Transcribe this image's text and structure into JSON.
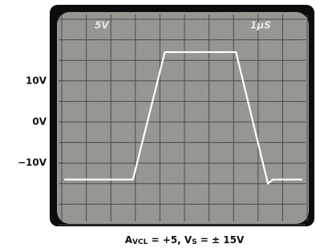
{
  "chart_data": {
    "type": "line",
    "scale_labels": [
      "5V",
      "1µS"
    ],
    "caption": {
      "a": "A",
      "a_sub": "VCL",
      "mid": " = +5, V",
      "v_sub": "S",
      "end": " = ± 15V"
    },
    "x": [
      0.1,
      2.9,
      4.2,
      7.1,
      8.4,
      8.6,
      9.8
    ],
    "series": [
      {
        "color": "#ffffff",
        "values": [
          -14,
          -14,
          17,
          17,
          -15,
          -14,
          -14
        ]
      }
    ],
    "xlim": [
      0,
      10
    ],
    "ylim": [
      -25,
      25
    ],
    "xticks": [
      0,
      1,
      2,
      3,
      4,
      5,
      6,
      7,
      8,
      9,
      10
    ],
    "ygrid": [
      -25,
      -20,
      -15,
      -10,
      -5,
      0,
      5,
      10,
      15,
      20,
      25
    ],
    "yticks": [
      {
        "value": 10,
        "label": "10V"
      },
      {
        "value": 0,
        "label": "0V"
      },
      {
        "value": -10,
        "label": "−10V"
      }
    ],
    "grid": true
  }
}
